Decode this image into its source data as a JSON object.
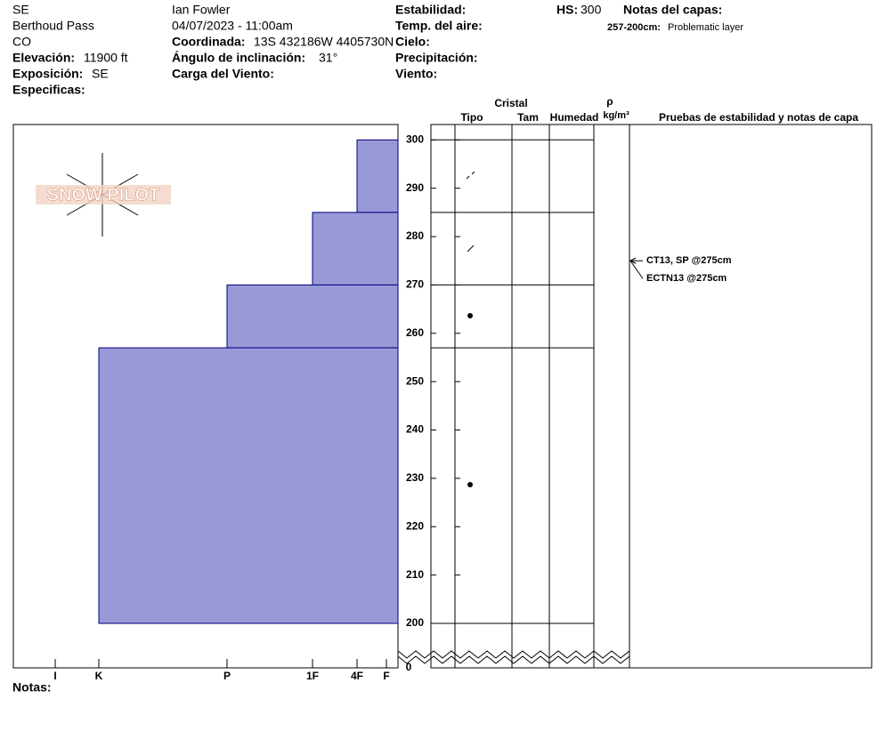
{
  "header": {
    "aspect": "SE",
    "location": "Berthoud Pass",
    "state": "CO",
    "elevation_label": "Elevación:",
    "elevation": "11900 ft",
    "exposure_label": "Exposición:",
    "exposure": "SE",
    "specifics_label": "Especificas:",
    "observer": "Ian Fowler",
    "datetime": "04/07/2023 - 11:00am",
    "coord_label": "Coordinada:",
    "coord": "13S 432186W 4405730N",
    "slope_label": "Ángulo de inclinación:",
    "slope": "31°",
    "wind_load_label": "Carga del Viento:",
    "stability_label": "Estabilidad:",
    "air_temp_label": "Temp. del aire:",
    "sky_label": "Cielo:",
    "precip_label": "Precipitación:",
    "wind_label": "Viento:",
    "hs_label": "HS:",
    "hs": "300",
    "layer_notes_label": "Notas del capas:",
    "layer_note_range": "257-200cm:",
    "layer_note": "Problematic layer"
  },
  "logo": "SNOW PILOT",
  "columns": {
    "crystal": "Cristal",
    "type": "Tipo",
    "size": "Tam",
    "moisture": "Humedad",
    "rho": "ρ",
    "density_unit": "kg/m³",
    "tests": "Pruebas de estabilidad y notas de capa"
  },
  "notes_label": "Notas:",
  "chart_data": {
    "type": "snow-profile",
    "ylim": [
      200,
      303
    ],
    "yticks": [
      200,
      210,
      220,
      230,
      240,
      250,
      260,
      270,
      280,
      290,
      300
    ],
    "break_tick": 0,
    "xticks": [
      {
        "value": 1,
        "label": "F"
      },
      {
        "value": 2,
        "label": "4F"
      },
      {
        "value": 3,
        "label": "1F"
      },
      {
        "value": 4,
        "label": "P"
      },
      {
        "value": 5,
        "label": "K"
      },
      {
        "value": 6,
        "label": "I"
      }
    ],
    "layers": [
      {
        "top": 300,
        "bottom": 285,
        "hardness": 2
      },
      {
        "top": 285,
        "bottom": 270,
        "hardness": 3
      },
      {
        "top": 270,
        "bottom": 257,
        "hardness": 4
      },
      {
        "top": 257,
        "bottom": 200,
        "hardness": 5
      }
    ],
    "color": "#9999d8",
    "tests": [
      {
        "label": "CT13, SP @275cm",
        "depth": 275
      },
      {
        "label": "ECTN13 @275cm",
        "depth": 275
      }
    ]
  }
}
